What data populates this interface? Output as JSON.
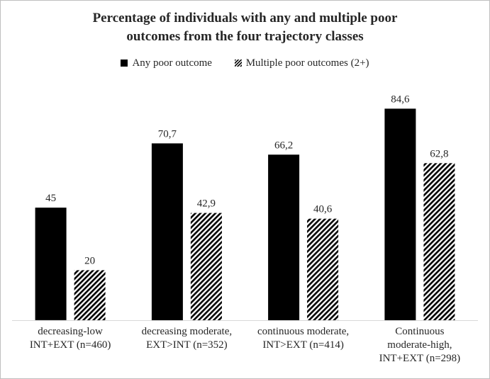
{
  "chart_data": {
    "type": "bar",
    "title_lines": [
      "Percentage of individuals with any and multiple poor",
      "outcomes from the four trajectory classes"
    ],
    "categories": [
      [
        "decreasing-low",
        "INT+EXT (n=460)"
      ],
      [
        "decreasing moderate,",
        "EXT>INT (n=352)"
      ],
      [
        "continuous moderate,",
        "INT>EXT (n=414)"
      ],
      [
        "Continuous",
        "moderate-high,",
        "INT+EXT (n=298)"
      ]
    ],
    "series": [
      {
        "name": "Any poor outcome",
        "values": [
          45,
          70.7,
          66.2,
          84.6
        ],
        "value_labels": [
          "45",
          "70,7",
          "66,2",
          "84,6"
        ],
        "fill": "solid",
        "color": "#000000"
      },
      {
        "name": "Multiple poor outcomes (2+)",
        "values": [
          20,
          42.9,
          40.6,
          62.8
        ],
        "value_labels": [
          "20",
          "42,9",
          "40,6",
          "62,8"
        ],
        "fill": "diagonal-hatch",
        "color": "#000000"
      }
    ],
    "ylim": [
      0,
      100
    ],
    "grid": false,
    "y_axis_visible": false,
    "legend_position": "top-center",
    "axis_color": "#d9d9d9"
  }
}
